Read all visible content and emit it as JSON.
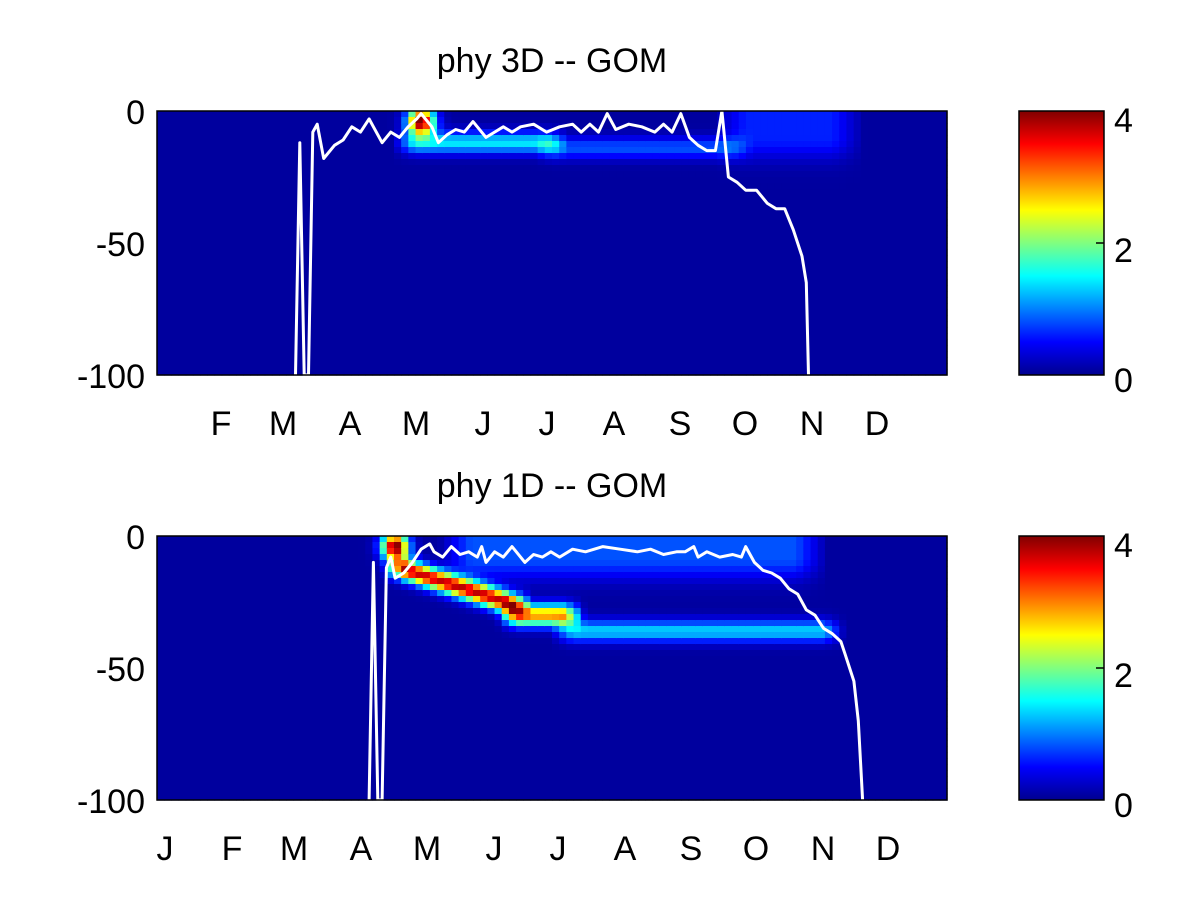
{
  "chart_data": [
    {
      "type": "heatmap",
      "title": "phy 3D   -- GOM",
      "xlabel": "",
      "ylabel": "",
      "x_tick_labels": [
        "F",
        "M",
        "A",
        "M",
        "J",
        "J",
        "A",
        "S",
        "O",
        "N",
        "D"
      ],
      "y_ticks": [
        0,
        -50,
        -100
      ],
      "y_tick_labels": [
        "0",
        "-50",
        "-100"
      ],
      "ylim": [
        -100,
        0
      ],
      "colorbar": {
        "colormap": "jet",
        "range": [
          0,
          4
        ],
        "ticks": [
          0,
          2,
          4
        ],
        "tick_labels": [
          "0",
          "2",
          "4"
        ]
      },
      "features": [
        {
          "kind": "bloom",
          "day": 140,
          "depth": -4,
          "value": 4.0
        },
        {
          "kind": "layer",
          "day_start": 135,
          "day_end": 200,
          "depth": -12,
          "value": 1.3
        },
        {
          "kind": "layer",
          "day_start": 200,
          "day_end": 285,
          "depth": -14,
          "value": 0.7
        },
        {
          "kind": "surface",
          "day_start": 285,
          "day_end": 335,
          "depth": -10,
          "value": 0.5
        }
      ],
      "line": {
        "name": "",
        "color": "#ffffff",
        "points": [
          [
            82,
            -100
          ],
          [
            84,
            -12
          ],
          [
            86,
            -100
          ],
          [
            88,
            -100
          ],
          [
            90,
            -8
          ],
          [
            92,
            -5
          ],
          [
            95,
            -18
          ],
          [
            100,
            -13
          ],
          [
            104,
            -11
          ],
          [
            108,
            -6
          ],
          [
            112,
            -8
          ],
          [
            116,
            -3
          ],
          [
            118,
            -6
          ],
          [
            122,
            -12
          ],
          [
            126,
            -8
          ],
          [
            130,
            -10
          ],
          [
            134,
            -6
          ],
          [
            138,
            -3
          ],
          [
            140,
            -1
          ],
          [
            142,
            -3
          ],
          [
            145,
            -6
          ],
          [
            148,
            -12
          ],
          [
            152,
            -9
          ],
          [
            156,
            -7
          ],
          [
            160,
            -8
          ],
          [
            164,
            -4
          ],
          [
            166,
            -6
          ],
          [
            170,
            -10
          ],
          [
            174,
            -8
          ],
          [
            178,
            -6
          ],
          [
            182,
            -8
          ],
          [
            186,
            -6
          ],
          [
            192,
            -5
          ],
          [
            198,
            -8
          ],
          [
            204,
            -6
          ],
          [
            210,
            -5
          ],
          [
            214,
            -8
          ],
          [
            218,
            -5
          ],
          [
            222,
            -8
          ],
          [
            226,
            -1
          ],
          [
            230,
            -7
          ],
          [
            236,
            -5
          ],
          [
            242,
            -6
          ],
          [
            248,
            -8
          ],
          [
            252,
            -5
          ],
          [
            256,
            -8
          ],
          [
            260,
            -1
          ],
          [
            264,
            -10
          ],
          [
            268,
            -13
          ],
          [
            272,
            -15
          ],
          [
            276,
            -15
          ],
          [
            279,
            0
          ],
          [
            282,
            -25
          ],
          [
            286,
            -27
          ],
          [
            290,
            -30
          ],
          [
            295,
            -30
          ],
          [
            300,
            -35
          ],
          [
            304,
            -37
          ],
          [
            308,
            -37
          ],
          [
            312,
            -45
          ],
          [
            316,
            -55
          ],
          [
            318,
            -65
          ],
          [
            319,
            -100
          ]
        ]
      }
    },
    {
      "type": "heatmap",
      "title": "phy 1D   -- GOM",
      "xlabel": "",
      "ylabel": "",
      "x_tick_labels": [
        "J",
        "F",
        "M",
        "A",
        "M",
        "J",
        "J",
        "A",
        "S",
        "O",
        "N",
        "D"
      ],
      "y_ticks": [
        0,
        -50,
        -100
      ],
      "y_tick_labels": [
        "0",
        "-50",
        "-100"
      ],
      "ylim": [
        -100,
        0
      ],
      "colorbar": {
        "colormap": "jet",
        "range": [
          0,
          4
        ],
        "ticks": [
          0,
          2,
          4
        ],
        "tick_labels": [
          "0",
          "2",
          "4"
        ]
      },
      "features": [
        {
          "kind": "bloom",
          "day": 110,
          "depth": -4,
          "value": 4.0
        },
        {
          "kind": "layer",
          "day_start": 112,
          "day_end": 165,
          "depth_start": -12,
          "depth_end": -26,
          "value": 3.6
        },
        {
          "kind": "layer",
          "day_start": 165,
          "day_end": 190,
          "depth": -30,
          "value": 2.8
        },
        {
          "kind": "layer",
          "day_start": 190,
          "day_end": 310,
          "depth": -36,
          "value": 1.2
        },
        {
          "kind": "surface",
          "day_start": 140,
          "day_end": 300,
          "depth": -8,
          "value": 0.7
        }
      ],
      "line": {
        "name": "",
        "color": "#ffffff",
        "points": [
          [
            98,
            -100
          ],
          [
            100,
            -10
          ],
          [
            102,
            -100
          ],
          [
            104,
            -100
          ],
          [
            106,
            -12
          ],
          [
            108,
            -8
          ],
          [
            110,
            -16
          ],
          [
            114,
            -14
          ],
          [
            118,
            -10
          ],
          [
            122,
            -5
          ],
          [
            126,
            -3
          ],
          [
            128,
            -6
          ],
          [
            132,
            -8
          ],
          [
            136,
            -4
          ],
          [
            140,
            -7
          ],
          [
            144,
            -6
          ],
          [
            148,
            -8
          ],
          [
            150,
            -4
          ],
          [
            152,
            -10
          ],
          [
            156,
            -6
          ],
          [
            160,
            -8
          ],
          [
            164,
            -4
          ],
          [
            166,
            -6
          ],
          [
            170,
            -10
          ],
          [
            174,
            -7
          ],
          [
            178,
            -8
          ],
          [
            182,
            -6
          ],
          [
            186,
            -8
          ],
          [
            192,
            -5
          ],
          [
            198,
            -6
          ],
          [
            206,
            -4
          ],
          [
            214,
            -5
          ],
          [
            222,
            -6
          ],
          [
            228,
            -5
          ],
          [
            234,
            -7
          ],
          [
            240,
            -6
          ],
          [
            244,
            -6
          ],
          [
            248,
            -4
          ],
          [
            250,
            -8
          ],
          [
            254,
            -6
          ],
          [
            260,
            -8
          ],
          [
            266,
            -7
          ],
          [
            270,
            -8
          ],
          [
            272,
            -4
          ],
          [
            276,
            -10
          ],
          [
            280,
            -13
          ],
          [
            284,
            -14
          ],
          [
            288,
            -16
          ],
          [
            292,
            -20
          ],
          [
            296,
            -22
          ],
          [
            300,
            -28
          ],
          [
            304,
            -30
          ],
          [
            308,
            -35
          ],
          [
            312,
            -37
          ],
          [
            316,
            -40
          ],
          [
            318,
            -45
          ],
          [
            320,
            -50
          ],
          [
            322,
            -55
          ],
          [
            324,
            -70
          ],
          [
            326,
            -100
          ]
        ]
      }
    }
  ]
}
